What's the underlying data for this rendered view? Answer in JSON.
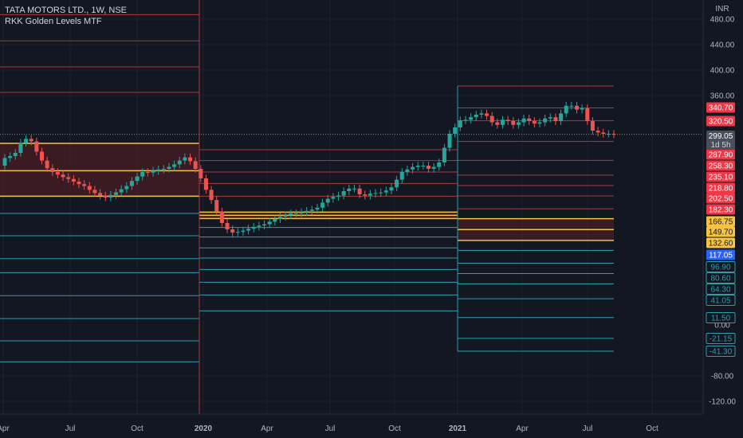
{
  "legend": {
    "symbol_line": "TATA MOTORS LTD., 1W, NSE",
    "indicator_line": "RKK Golden Levels MTF"
  },
  "chart_data": {
    "type": "candlestick",
    "currency_label": "INR",
    "y_ticks": [
      480,
      440,
      400,
      360,
      -80,
      -120
    ],
    "y_tick_labels": [
      "480.00",
      "440.00",
      "400.00",
      "360.00",
      "-80.00",
      "-120.00"
    ],
    "zero_label": "0.00",
    "x_ticks": [
      {
        "label": "Apr",
        "bold": false
      },
      {
        "label": "Jul",
        "bold": false
      },
      {
        "label": "Oct",
        "bold": false
      },
      {
        "label": "2020",
        "bold": true
      },
      {
        "label": "Apr",
        "bold": false
      },
      {
        "label": "Jul",
        "bold": false
      },
      {
        "label": "Oct",
        "bold": false
      },
      {
        "label": "2021",
        "bold": true
      },
      {
        "label": "Apr",
        "bold": false
      },
      {
        "label": "Jul",
        "bold": false
      },
      {
        "label": "Oct",
        "bold": false
      }
    ],
    "current_price": {
      "value": 299.05,
      "label": "299.05",
      "countdown": "1d 5h"
    },
    "level_badges": [
      {
        "value": 340.7,
        "label": "340.70",
        "kind": "red"
      },
      {
        "value": 320.5,
        "label": "320.50",
        "kind": "red"
      },
      {
        "value": 287.9,
        "label": "287.90",
        "kind": "red"
      },
      {
        "value": 258.3,
        "label": "258.30",
        "kind": "red"
      },
      {
        "value": 235.1,
        "label": "235.10",
        "kind": "red"
      },
      {
        "value": 218.8,
        "label": "218.80",
        "kind": "red"
      },
      {
        "value": 202.5,
        "label": "202.50",
        "kind": "red"
      },
      {
        "value": 182.3,
        "label": "182.30",
        "kind": "red"
      },
      {
        "value": 166.75,
        "label": "166.75",
        "kind": "yellow"
      },
      {
        "value": 149.7,
        "label": "149.70",
        "kind": "yellow"
      },
      {
        "value": 132.6,
        "label": "132.60",
        "kind": "yellow"
      },
      {
        "value": 117.05,
        "label": "117.05",
        "kind": "blue"
      },
      {
        "value": 96.9,
        "label": "96.90",
        "kind": "cyan"
      },
      {
        "value": 80.6,
        "label": "80.60",
        "kind": "cyan"
      },
      {
        "value": 64.3,
        "label": "64.30",
        "kind": "cyan"
      },
      {
        "value": 41.05,
        "label": "41.05",
        "kind": "cyan"
      },
      {
        "value": 11.5,
        "label": "11.50",
        "kind": "cyan"
      },
      {
        "value": -21.15,
        "label": "-21.15",
        "kind": "cyan"
      },
      {
        "value": -41.3,
        "label": "-41.30",
        "kind": "cyan"
      }
    ],
    "yearly_levels": [
      {
        "period": "2019",
        "red": [
          487,
          446,
          405,
          365
        ],
        "yellow": [
          285,
          242,
          202
        ],
        "blue": [
          175
        ],
        "cyan": [
          140,
          104,
          82,
          46,
          10,
          -25,
          -58
        ]
      },
      {
        "period": "2020",
        "red": [
          275,
          258,
          240,
          222,
          202
        ],
        "yellow": [
          177,
          172,
          167
        ],
        "blue": [
          153
        ],
        "cyan": [
          138,
          121,
          105,
          87,
          67,
          47,
          22
        ]
      },
      {
        "period": "2021",
        "red": [
          375,
          340.7,
          320.5,
          287.9,
          258.3,
          235.1,
          218.8,
          202.5,
          182.3
        ],
        "yellow": [
          166.75,
          149.7,
          132.6
        ],
        "blue": [
          117.05
        ],
        "cyan": [
          96.9,
          80.6,
          64.3,
          41.05,
          11.5,
          -21.15,
          -41.3
        ]
      }
    ],
    "candles_close": [
      262,
      265,
      270,
      286,
      292,
      288,
      272,
      258,
      246,
      240,
      236,
      232,
      229,
      225,
      221,
      218,
      212,
      207,
      203,
      200,
      204,
      208,
      213,
      218,
      226,
      233,
      240,
      239,
      242,
      244,
      245,
      248,
      252,
      258,
      263,
      257,
      245,
      230,
      212,
      196,
      178,
      160,
      150,
      145,
      146,
      148,
      151,
      154,
      156,
      158,
      162,
      166,
      170,
      172,
      175,
      175,
      177,
      179,
      181,
      184,
      192,
      198,
      201,
      203,
      210,
      214,
      214,
      205,
      203,
      206,
      207,
      208,
      211,
      216,
      228,
      240,
      244,
      248,
      250,
      250,
      245,
      248,
      255,
      278,
      300,
      310,
      321,
      322,
      326,
      330,
      332,
      328,
      318,
      314,
      322,
      320,
      314,
      318,
      324,
      320,
      316,
      318,
      324,
      326,
      320,
      332,
      344,
      344,
      338,
      340,
      320,
      305,
      302,
      300,
      300,
      299.05
    ],
    "candles_open": [
      250,
      262,
      265,
      270,
      286,
      292,
      288,
      272,
      258,
      246,
      240,
      236,
      232,
      229,
      225,
      221,
      218,
      212,
      207,
      203,
      200,
      204,
      208,
      213,
      218,
      226,
      233,
      240,
      239,
      242,
      244,
      245,
      248,
      252,
      258,
      263,
      257,
      245,
      230,
      212,
      196,
      178,
      160,
      150,
      145,
      146,
      148,
      151,
      154,
      156,
      158,
      162,
      166,
      170,
      172,
      175,
      175,
      177,
      179,
      181,
      184,
      192,
      198,
      201,
      203,
      210,
      214,
      214,
      205,
      203,
      206,
      207,
      208,
      211,
      216,
      228,
      240,
      244,
      248,
      250,
      250,
      245,
      248,
      255,
      278,
      300,
      310,
      321,
      322,
      326,
      330,
      332,
      328,
      318,
      314,
      322,
      320,
      314,
      318,
      324,
      320,
      316,
      318,
      324,
      326,
      320,
      332,
      344,
      344,
      338,
      340,
      320,
      305,
      302,
      300,
      300
    ]
  },
  "colors": {
    "background": "#131722",
    "grid": "#1e222d",
    "up": "#26a69a",
    "down": "#ef5350",
    "red_level": "#b2363a",
    "yellow_level": "#f5c242",
    "cyan_level": "#2a9fb0",
    "blue_level": "#2962ff",
    "zone_fill": "#5c1f25",
    "axis_text": "#b2b5be",
    "price_badge": "#4a4e59"
  }
}
